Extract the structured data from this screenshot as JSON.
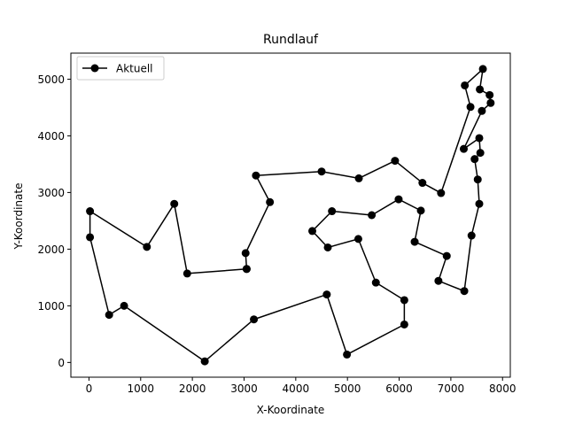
{
  "chart_data": {
    "type": "line",
    "title": "Rundlauf",
    "xlabel": "X-Koordinate",
    "ylabel": "Y-Koordinate",
    "xlim": [
      -350,
      8150
    ],
    "ylim": [
      -260,
      5460
    ],
    "xticks": [
      0,
      1000,
      2000,
      3000,
      4000,
      5000,
      6000,
      7000,
      8000
    ],
    "yticks": [
      0,
      1000,
      2000,
      3000,
      4000,
      5000
    ],
    "grid": false,
    "legend_position": "upper left",
    "series": [
      {
        "name": "Aktuell",
        "color": "#000000",
        "marker": "circle",
        "points": [
          [
            3050,
            1650
          ],
          [
            1900,
            1570
          ],
          [
            1650,
            2800
          ],
          [
            1120,
            2040
          ],
          [
            20,
            2670
          ],
          [
            20,
            2210
          ],
          [
            390,
            840
          ],
          [
            680,
            1000
          ],
          [
            2240,
            20
          ],
          [
            3190,
            760
          ],
          [
            4600,
            1200
          ],
          [
            4990,
            140
          ],
          [
            6100,
            670
          ],
          [
            6100,
            1100
          ],
          [
            5550,
            1410
          ],
          [
            5210,
            2180
          ],
          [
            4620,
            2030
          ],
          [
            4320,
            2320
          ],
          [
            4700,
            2670
          ],
          [
            5470,
            2600
          ],
          [
            5990,
            2880
          ],
          [
            6420,
            2680
          ],
          [
            6300,
            2130
          ],
          [
            6920,
            1880
          ],
          [
            6760,
            1440
          ],
          [
            7260,
            1260
          ],
          [
            7400,
            2240
          ],
          [
            7550,
            2800
          ],
          [
            7520,
            3230
          ],
          [
            7460,
            3590
          ],
          [
            7570,
            3700
          ],
          [
            7550,
            3960
          ],
          [
            7250,
            3770
          ],
          [
            7600,
            4440
          ],
          [
            7770,
            4580
          ],
          [
            7750,
            4720
          ],
          [
            7560,
            4820
          ],
          [
            7620,
            5180
          ],
          [
            7270,
            4890
          ],
          [
            7380,
            4510
          ],
          [
            6810,
            2990
          ],
          [
            6450,
            3170
          ],
          [
            5920,
            3560
          ],
          [
            5220,
            3250
          ],
          [
            4500,
            3370
          ],
          [
            3230,
            3300
          ],
          [
            3500,
            2830
          ],
          [
            3030,
            1930
          ],
          [
            3050,
            1650
          ]
        ]
      }
    ]
  }
}
